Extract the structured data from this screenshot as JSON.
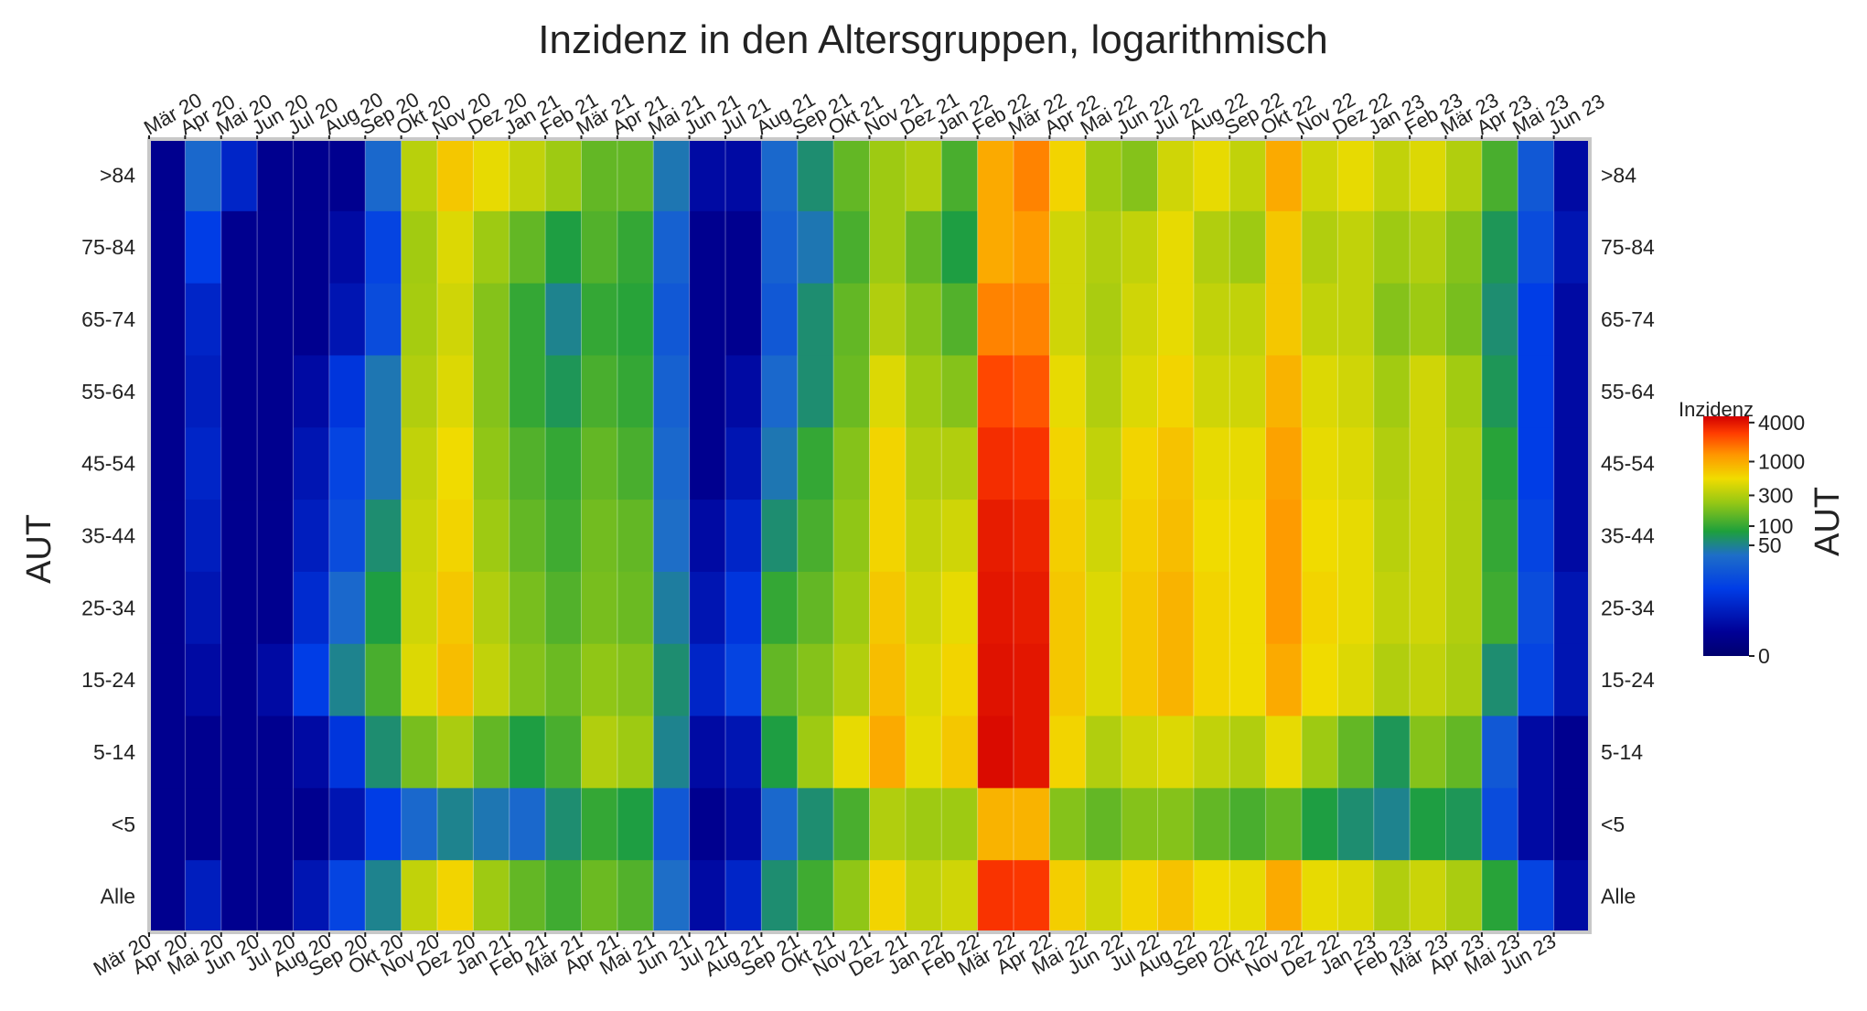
{
  "chart_data": {
    "type": "heatmap",
    "title": "Inzidenz in den Altersgruppen, logarithmisch",
    "ylabel_left": "AUT",
    "ylabel_right": "AUT",
    "colorbar": {
      "title": "Inzidenz",
      "ticks": [
        "4000",
        "1000",
        "300",
        "100",
        "50",
        "0"
      ],
      "tick_values": [
        4000,
        1000,
        300,
        100,
        50,
        0
      ],
      "scale": "log",
      "range": [
        0,
        5000
      ]
    },
    "rows": [
      ">84",
      "75-84",
      "65-74",
      "55-64",
      "45-54",
      "35-44",
      "25-34",
      "15-24",
      "5-14",
      "<5",
      "Alle"
    ],
    "months": [
      "Mär 20",
      "Apr 20",
      "Mai 20",
      "Jun 20",
      "Jul 20",
      "Aug 20",
      "Sep 20",
      "Okt 20",
      "Nov 20",
      "Dez 20",
      "Jan 21",
      "Feb 21",
      "Mär 21",
      "Apr 21",
      "Mai 21",
      "Jun 21",
      "Jul 21",
      "Aug 21",
      "Sep 21",
      "Okt 21",
      "Nov 21",
      "Dez 21",
      "Jan 22",
      "Feb 22",
      "Mär 22",
      "Apr 22",
      "Mai 22",
      "Jun 22",
      "Jul 22",
      "Aug 22",
      "Sep 22",
      "Okt 22",
      "Nov 22",
      "Dez 22",
      "Jan 23",
      "Feb 23",
      "Mär 23",
      "Apr 23",
      "Mai 23",
      "Jun 23"
    ],
    "top_month_labels": [
      "Mär 20",
      "Apr 20",
      "Mai 20",
      "Jun 20",
      "Jul 20",
      "Aug 20",
      "Sep 20",
      "Okt 20",
      "Nov 20",
      "Dez 20",
      "Jan 21",
      "Feb 21",
      "Mär 21",
      "Apr 21",
      "Mai 21",
      "Jun 21",
      "Jul 21",
      "Aug 21",
      "Sep 21",
      "Okt 21",
      "Nov 21",
      "Dez 21",
      "Jan 22",
      "Feb 22",
      "Mär 22",
      "Apr 22",
      "Mai 22",
      "Jun 22",
      "Jul 22",
      "Aug 22",
      "Sep 22",
      "Okt 22",
      "Nov 22",
      "Dez 22",
      "Jan 23",
      "Feb 23",
      "Mär 23",
      "Apr 23",
      "Mai 23",
      "Jun 23"
    ],
    "bottom_month_labels": [
      "Mär 20",
      "Apr 20",
      "Mai 20",
      "Jun 20",
      "Jul 20",
      "Aug 20",
      "Sep 20",
      "Okt 20",
      "Nov 20",
      "Dez 20",
      "Jan 21",
      "Feb 21",
      "Mär 21",
      "Apr 21",
      "Mai 21",
      "Jun 21",
      "Jul 21",
      "Aug 21",
      "Sep 21",
      "Okt 21",
      "Nov 21",
      "Dez 21",
      "Jan 22",
      "Feb 22",
      "Mär 22",
      "Apr 22",
      "Mai 22",
      "Jun 22",
      "Jul 22",
      "Aug 22",
      "Sep 22",
      "Okt 22",
      "Nov 22",
      "Dez 22",
      "Jan 23",
      "Feb 23",
      "Mär 23",
      "Apr 23",
      "Mai 23",
      "Jun 23"
    ],
    "values": [
      [
        1,
        30,
        5,
        1,
        1,
        1,
        30,
        320,
        700,
        500,
        350,
        250,
        150,
        150,
        40,
        2,
        2,
        30,
        60,
        150,
        250,
        300,
        120,
        1000,
        1500,
        600,
        250,
        200,
        400,
        500,
        350,
        1000,
        400,
        500,
        350,
        450,
        300,
        120,
        20,
        2
      ],
      [
        1,
        10,
        1,
        1,
        1,
        2,
        12,
        260,
        450,
        250,
        150,
        80,
        130,
        100,
        25,
        1,
        1,
        25,
        40,
        120,
        250,
        150,
        80,
        1000,
        1200,
        400,
        300,
        350,
        500,
        300,
        250,
        700,
        300,
        350,
        250,
        300,
        200,
        70,
        15,
        3
      ],
      [
        1,
        5,
        1,
        1,
        1,
        3,
        15,
        270,
        400,
        200,
        100,
        50,
        100,
        90,
        20,
        1,
        1,
        20,
        60,
        150,
        300,
        200,
        130,
        1500,
        1500,
        400,
        280,
        400,
        500,
        350,
        350,
        700,
        350,
        350,
        200,
        250,
        180,
        60,
        10,
        2
      ],
      [
        1,
        4,
        1,
        1,
        2,
        8,
        40,
        300,
        450,
        200,
        100,
        70,
        120,
        100,
        25,
        1,
        2,
        30,
        60,
        160,
        450,
        250,
        200,
        2500,
        2200,
        500,
        300,
        450,
        600,
        400,
        400,
        900,
        450,
        400,
        260,
        400,
        260,
        70,
        10,
        2
      ],
      [
        1,
        5,
        1,
        1,
        3,
        12,
        40,
        350,
        550,
        220,
        130,
        100,
        150,
        120,
        30,
        1,
        3,
        40,
        100,
        200,
        600,
        300,
        300,
        3200,
        3000,
        600,
        350,
        600,
        750,
        500,
        500,
        1100,
        500,
        450,
        300,
        400,
        300,
        90,
        10,
        2
      ],
      [
        1,
        4,
        1,
        1,
        4,
        15,
        60,
        380,
        600,
        250,
        150,
        110,
        170,
        150,
        35,
        2,
        5,
        60,
        120,
        220,
        600,
        350,
        400,
        3800,
        3500,
        650,
        400,
        650,
        800,
        550,
        550,
        1200,
        550,
        500,
        320,
        400,
        300,
        100,
        12,
        2
      ],
      [
        1,
        3,
        1,
        1,
        6,
        30,
        80,
        400,
        700,
        300,
        180,
        130,
        180,
        160,
        45,
        3,
        8,
        100,
        150,
        250,
        700,
        400,
        500,
        4000,
        3800,
        700,
        450,
        700,
        900,
        600,
        550,
        1200,
        600,
        500,
        350,
        400,
        300,
        110,
        15,
        3
      ],
      [
        1,
        2,
        1,
        2,
        10,
        50,
        120,
        450,
        800,
        350,
        200,
        160,
        220,
        200,
        60,
        5,
        12,
        150,
        200,
        300,
        800,
        450,
        600,
        4200,
        4000,
        700,
        450,
        700,
        900,
        600,
        550,
        1000,
        550,
        450,
        300,
        350,
        280,
        60,
        12,
        3
      ],
      [
        1,
        1,
        1,
        1,
        2,
        8,
        60,
        180,
        280,
        150,
        80,
        120,
        300,
        250,
        50,
        2,
        3,
        80,
        250,
        500,
        1000,
        500,
        700,
        4500,
        4000,
        600,
        300,
        400,
        450,
        350,
        300,
        500,
        250,
        150,
        70,
        200,
        150,
        20,
        2,
        1
      ],
      [
        1,
        1,
        1,
        1,
        1,
        3,
        10,
        30,
        50,
        40,
        30,
        60,
        100,
        80,
        20,
        1,
        2,
        30,
        60,
        120,
        300,
        250,
        250,
        900,
        900,
        200,
        150,
        200,
        200,
        150,
        120,
        150,
        80,
        60,
        50,
        80,
        70,
        15,
        2,
        1
      ],
      [
        1,
        4,
        1,
        1,
        3,
        12,
        50,
        350,
        600,
        250,
        150,
        110,
        160,
        130,
        35,
        2,
        5,
        60,
        110,
        220,
        600,
        350,
        400,
        3000,
        2900,
        650,
        400,
        600,
        750,
        550,
        500,
        1000,
        500,
        450,
        300,
        380,
        280,
        90,
        12,
        2
      ]
    ]
  }
}
